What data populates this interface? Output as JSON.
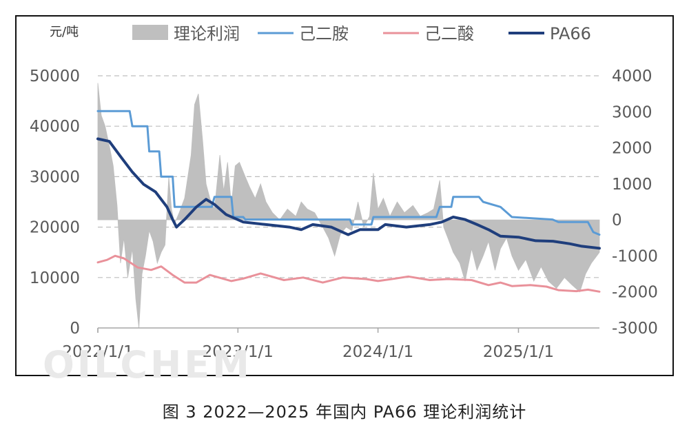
{
  "caption": "图 3  2022—2025 年国内 PA66 理论利润统计",
  "watermark": "OILCHEM",
  "chart_data": {
    "type": "line",
    "title": "",
    "unit_left": "元/吨",
    "y_left": {
      "min": 0,
      "max": 50000,
      "ticks": [
        0,
        10000,
        20000,
        30000,
        40000,
        50000
      ]
    },
    "y_right": {
      "min": -3000,
      "max": 4000,
      "ticks": [
        -3000,
        -2000,
        -1000,
        0,
        1000,
        2000,
        3000,
        4000
      ]
    },
    "x_axis": {
      "start": "2022/1/1",
      "end": "2025/7/31",
      "ticks": [
        "2022/1/1",
        "2023/1/1",
        "2024/1/1",
        "2025/1/1"
      ]
    },
    "grid": "horizontal dashed",
    "legend_position": "top",
    "legend": [
      {
        "name": "理论利润",
        "kind": "area",
        "color": "#bfbfbf"
      },
      {
        "name": "己二胺",
        "kind": "line",
        "color": "#5b9bd5"
      },
      {
        "name": "己二酸",
        "kind": "line",
        "color": "#e9919a"
      },
      {
        "name": "PA66",
        "kind": "line",
        "color": "#1f3e7c"
      }
    ],
    "series": [
      {
        "name": "己二胺",
        "axis": "left",
        "color": "#5b9bd5",
        "step": true,
        "points": [
          [
            "2022/1/1",
            43000
          ],
          [
            "2022/3/25",
            43000
          ],
          [
            "2022/4/1",
            40000
          ],
          [
            "2022/5/10",
            40000
          ],
          [
            "2022/5/15",
            35000
          ],
          [
            "2022/6/10",
            35000
          ],
          [
            "2022/6/15",
            30000
          ],
          [
            "2022/7/15",
            30000
          ],
          [
            "2022/7/20",
            24000
          ],
          [
            "2022/10/25",
            24000
          ],
          [
            "2022/11/1",
            26000
          ],
          [
            "2022/12/15",
            26000
          ],
          [
            "2022/12/20",
            22000
          ],
          [
            "2023/1/15",
            22000
          ],
          [
            "2023/1/20",
            21500
          ],
          [
            "2023/10/20",
            21500
          ],
          [
            "2023/10/25",
            20500
          ],
          [
            "2023/12/15",
            20500
          ],
          [
            "2023/12/20",
            22000
          ],
          [
            "2024/6/1",
            22000
          ],
          [
            "2024/6/10",
            24000
          ],
          [
            "2024/7/10",
            24000
          ],
          [
            "2024/7/15",
            26000
          ],
          [
            "2024/9/20",
            26000
          ],
          [
            "2024/10/1",
            25000
          ],
          [
            "2024/11/15",
            24000
          ],
          [
            "2024/12/15",
            22000
          ],
          [
            "2025/3/31",
            21500
          ],
          [
            "2025/4/15",
            21000
          ],
          [
            "2025/7/1",
            21000
          ],
          [
            "2025/7/15",
            19000
          ],
          [
            "2025/7/31",
            18500
          ]
        ]
      },
      {
        "name": "PA66",
        "axis": "left",
        "color": "#1f3e7c",
        "points": [
          [
            "2022/1/1",
            37500
          ],
          [
            "2022/1/31",
            37000
          ],
          [
            "2022/3/1",
            34000
          ],
          [
            "2022/3/31",
            31000
          ],
          [
            "2022/4/30",
            28500
          ],
          [
            "2022/5/31",
            27000
          ],
          [
            "2022/6/30",
            24000
          ],
          [
            "2022/7/15",
            21500
          ],
          [
            "2022/7/25",
            20000
          ],
          [
            "2022/8/15",
            21500
          ],
          [
            "2022/9/15",
            24000
          ],
          [
            "2022/10/10",
            25500
          ],
          [
            "2022/11/1",
            24500
          ],
          [
            "2022/12/1",
            22500
          ],
          [
            "2023/1/15",
            21000
          ],
          [
            "2023/3/15",
            20500
          ],
          [
            "2023/5/15",
            20000
          ],
          [
            "2023/6/15",
            19500
          ],
          [
            "2023/7/15",
            20500
          ],
          [
            "2023/9/1",
            20000
          ],
          [
            "2023/10/15",
            18500
          ],
          [
            "2023/11/15",
            19500
          ],
          [
            "2024/1/1",
            19500
          ],
          [
            "2024/1/20",
            20500
          ],
          [
            "2024/3/15",
            20000
          ],
          [
            "2024/5/15",
            20500
          ],
          [
            "2024/6/15",
            21000
          ],
          [
            "2024/7/15",
            22000
          ],
          [
            "2024/8/15",
            21500
          ],
          [
            "2024/9/15",
            20500
          ],
          [
            "2024/10/15",
            19500
          ],
          [
            "2024/11/15",
            18200
          ],
          [
            "2025/1/1",
            18000
          ],
          [
            "2025/2/15",
            17300
          ],
          [
            "2025/4/1",
            17200
          ],
          [
            "2025/5/15",
            16700
          ],
          [
            "2025/6/15",
            16200
          ],
          [
            "2025/7/31",
            15800
          ]
        ]
      },
      {
        "name": "己二酸",
        "axis": "left",
        "color": "#e9919a",
        "points": [
          [
            "2022/1/1",
            13000
          ],
          [
            "2022/1/25",
            13500
          ],
          [
            "2022/2/15",
            14300
          ],
          [
            "2022/3/10",
            13800
          ],
          [
            "2022/4/15",
            12000
          ],
          [
            "2022/5/20",
            11500
          ],
          [
            "2022/6/15",
            12200
          ],
          [
            "2022/7/15",
            10500
          ],
          [
            "2022/8/15",
            9000
          ],
          [
            "2022/9/15",
            9000
          ],
          [
            "2022/10/20",
            10500
          ],
          [
            "2022/12/15",
            9300
          ],
          [
            "2023/1/15",
            9800
          ],
          [
            "2023/3/1",
            10800
          ],
          [
            "2023/5/1",
            9500
          ],
          [
            "2023/6/20",
            10000
          ],
          [
            "2023/8/10",
            9000
          ],
          [
            "2023/10/1",
            10000
          ],
          [
            "2023/12/1",
            9700
          ],
          [
            "2024/1/1",
            9300
          ],
          [
            "2024/2/15",
            9800
          ],
          [
            "2024/3/20",
            10200
          ],
          [
            "2024/5/15",
            9500
          ],
          [
            "2024/7/1",
            9700
          ],
          [
            "2024/9/1",
            9500
          ],
          [
            "2024/10/15",
            8500
          ],
          [
            "2024/11/15",
            9000
          ],
          [
            "2024/12/15",
            8300
          ],
          [
            "2025/2/1",
            8500
          ],
          [
            "2025/3/15",
            8200
          ],
          [
            "2025/4/15",
            7500
          ],
          [
            "2025/6/1",
            7300
          ],
          [
            "2025/7/1",
            7600
          ],
          [
            "2025/7/31",
            7200
          ]
        ]
      },
      {
        "name": "理论利润",
        "axis": "right",
        "color": "#bfbfbf",
        "kind": "area",
        "points": [
          [
            "2022/1/1",
            3800
          ],
          [
            "2022/1/10",
            2900
          ],
          [
            "2022/1/20",
            2600
          ],
          [
            "2022/2/1",
            2000
          ],
          [
            "2022/2/10",
            1500
          ],
          [
            "2022/2/20",
            400
          ],
          [
            "2022/3/1",
            -1200
          ],
          [
            "2022/3/10",
            -500
          ],
          [
            "2022/3/20",
            -1600
          ],
          [
            "2022/4/1",
            -800
          ],
          [
            "2022/4/10",
            -2200
          ],
          [
            "2022/4/18",
            -3000
          ],
          [
            "2022/4/26",
            -1500
          ],
          [
            "2022/5/5",
            -1000
          ],
          [
            "2022/5/15",
            -300
          ],
          [
            "2022/5/25",
            -600
          ],
          [
            "2022/6/5",
            -1200
          ],
          [
            "2022/6/15",
            -900
          ],
          [
            "2022/6/25",
            -700
          ],
          [
            "2022/7/5",
            1200
          ],
          [
            "2022/7/12",
            300
          ],
          [
            "2022/7/20",
            -100
          ],
          [
            "2022/8/1",
            200
          ],
          [
            "2022/8/15",
            600
          ],
          [
            "2022/9/1",
            1800
          ],
          [
            "2022/9/10",
            3200
          ],
          [
            "2022/9/20",
            3500
          ],
          [
            "2022/10/1",
            2200
          ],
          [
            "2022/10/10",
            1000
          ],
          [
            "2022/10/20",
            600
          ],
          [
            "2022/11/1",
            300
          ],
          [
            "2022/11/15",
            1800
          ],
          [
            "2022/11/25",
            800
          ],
          [
            "2022/12/5",
            1600
          ],
          [
            "2022/12/15",
            400
          ],
          [
            "2022/12/25",
            1500
          ],
          [
            "2023/1/5",
            1600
          ],
          [
            "2023/1/20",
            1200
          ],
          [
            "2023/2/1",
            900
          ],
          [
            "2023/2/15",
            600
          ],
          [
            "2023/3/1",
            1000
          ],
          [
            "2023/3/15",
            500
          ],
          [
            "2023/4/1",
            200
          ],
          [
            "2023/4/20",
            0
          ],
          [
            "2023/5/10",
            300
          ],
          [
            "2023/6/1",
            100
          ],
          [
            "2023/6/15",
            500
          ],
          [
            "2023/7/1",
            300
          ],
          [
            "2023/7/20",
            200
          ],
          [
            "2023/8/10",
            -200
          ],
          [
            "2023/8/25",
            -500
          ],
          [
            "2023/9/10",
            -1000
          ],
          [
            "2023/9/25",
            -400
          ],
          [
            "2023/10/10",
            -200
          ],
          [
            "2023/10/25",
            -300
          ],
          [
            "2023/11/10",
            500
          ],
          [
            "2023/11/25",
            -200
          ],
          [
            "2023/12/10",
            100
          ],
          [
            "2023/12/20",
            1300
          ],
          [
            "2024/1/1",
            300
          ],
          [
            "2024/1/15",
            600
          ],
          [
            "2024/2/1",
            100
          ],
          [
            "2024/2/20",
            500
          ],
          [
            "2024/3/10",
            200
          ],
          [
            "2024/4/1",
            400
          ],
          [
            "2024/4/20",
            100
          ],
          [
            "2024/5/10",
            200
          ],
          [
            "2024/5/25",
            300
          ],
          [
            "2024/6/10",
            1100
          ],
          [
            "2024/6/20",
            -200
          ],
          [
            "2024/7/1",
            -500
          ],
          [
            "2024/7/15",
            -900
          ],
          [
            "2024/8/1",
            -1200
          ],
          [
            "2024/8/15",
            -1700
          ],
          [
            "2024/9/1",
            -800
          ],
          [
            "2024/9/15",
            -1400
          ],
          [
            "2024/10/1",
            -1000
          ],
          [
            "2024/10/15",
            -600
          ],
          [
            "2024/11/1",
            -1400
          ],
          [
            "2024/11/15",
            -800
          ],
          [
            "2024/12/1",
            -500
          ],
          [
            "2024/12/15",
            -1000
          ],
          [
            "2025/1/1",
            -1400
          ],
          [
            "2025/1/20",
            -1100
          ],
          [
            "2025/2/10",
            -1700
          ],
          [
            "2025/3/1",
            -1300
          ],
          [
            "2025/3/20",
            -1700
          ],
          [
            "2025/4/10",
            -1900
          ],
          [
            "2025/5/1",
            -1600
          ],
          [
            "2025/5/20",
            -1800
          ],
          [
            "2025/6/10",
            -2000
          ],
          [
            "2025/6/25",
            -1500
          ],
          [
            "2025/7/10",
            -1200
          ],
          [
            "2025/7/31",
            -900
          ]
        ]
      }
    ]
  }
}
